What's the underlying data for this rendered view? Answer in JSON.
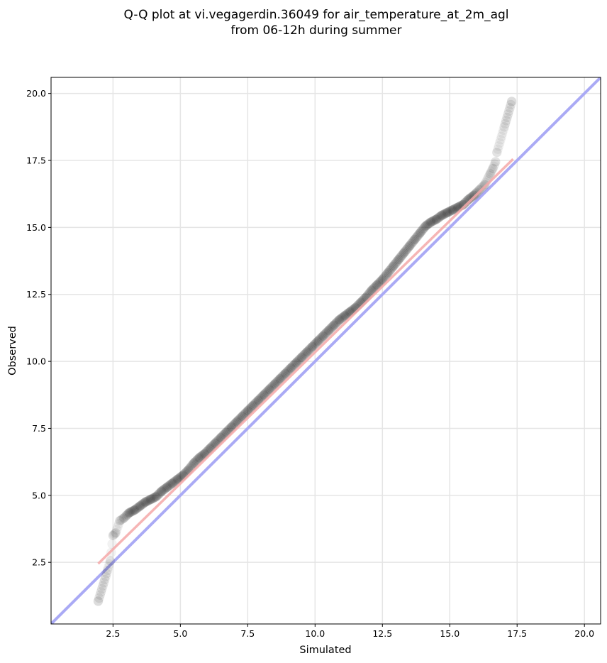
{
  "chart_data": {
    "type": "scatter",
    "title_lines": [
      "Q-Q plot at vi.vegagerdin.36049 for air_temperature_at_2m_agl",
      "from 06-12h during summer"
    ],
    "xlabel": "Simulated",
    "ylabel": "Observed",
    "xlim": [
      0.2,
      20.6
    ],
    "ylim": [
      0.2,
      20.6
    ],
    "xticks": [
      2.5,
      5.0,
      7.5,
      10.0,
      12.5,
      15.0,
      17.5,
      20.0
    ],
    "yticks": [
      2.5,
      5.0,
      7.5,
      10.0,
      12.5,
      15.0,
      17.5,
      20.0
    ],
    "tick_labels_x": [
      "2.5",
      "5.0",
      "7.5",
      "10.0",
      "12.5",
      "15.0",
      "17.5",
      "20.0"
    ],
    "tick_labels_y": [
      "2.5",
      "5.0",
      "7.5",
      "10.0",
      "12.5",
      "15.0",
      "17.5",
      "20.0"
    ],
    "grid": true,
    "reference_line": {
      "kind": "identity",
      "color": "#aaaaf5"
    },
    "fit_line": {
      "x": [
        1.95,
        17.35
      ],
      "y": [
        2.45,
        17.55
      ],
      "color": "#f5a8a8"
    },
    "point_color": "#000000",
    "quantiles": {
      "x": [
        1.95,
        2.4,
        2.5,
        2.6,
        2.75,
        2.9,
        3.1,
        3.3,
        3.5,
        3.7,
        3.9,
        4.1,
        4.3,
        4.5,
        4.7,
        4.9,
        5.1,
        5.3,
        5.5,
        5.7,
        5.9,
        6.1,
        6.3,
        6.5,
        6.7,
        6.9,
        7.1,
        7.3,
        7.5,
        7.7,
        7.9,
        8.1,
        8.3,
        8.5,
        8.7,
        8.9,
        9.1,
        9.3,
        9.5,
        9.7,
        9.9,
        10.1,
        10.3,
        10.5,
        10.7,
        10.9,
        11.1,
        11.3,
        11.5,
        11.7,
        11.9,
        12.1,
        12.3,
        12.5,
        12.7,
        12.9,
        13.1,
        13.3,
        13.5,
        13.7,
        13.9,
        14.1,
        14.3,
        14.5,
        14.7,
        14.9,
        15.1,
        15.3,
        15.5,
        15.7,
        15.9,
        16.1,
        16.3,
        16.5,
        16.6,
        16.7,
        16.75,
        17.3
      ],
      "y": [
        1.05,
        2.55,
        3.5,
        3.6,
        4.05,
        4.15,
        4.35,
        4.45,
        4.6,
        4.75,
        4.85,
        4.95,
        5.15,
        5.3,
        5.45,
        5.6,
        5.75,
        5.95,
        6.2,
        6.4,
        6.55,
        6.75,
        6.95,
        7.15,
        7.35,
        7.55,
        7.75,
        7.95,
        8.15,
        8.35,
        8.55,
        8.75,
        8.95,
        9.15,
        9.35,
        9.55,
        9.75,
        9.95,
        10.15,
        10.35,
        10.55,
        10.75,
        10.95,
        11.15,
        11.35,
        11.55,
        11.7,
        11.85,
        12.0,
        12.2,
        12.4,
        12.65,
        12.85,
        13.05,
        13.3,
        13.55,
        13.8,
        14.05,
        14.3,
        14.55,
        14.8,
        15.05,
        15.2,
        15.3,
        15.45,
        15.55,
        15.65,
        15.75,
        15.85,
        16.05,
        16.2,
        16.4,
        16.6,
        17.0,
        17.2,
        17.45,
        17.8,
        19.7
      ]
    }
  }
}
